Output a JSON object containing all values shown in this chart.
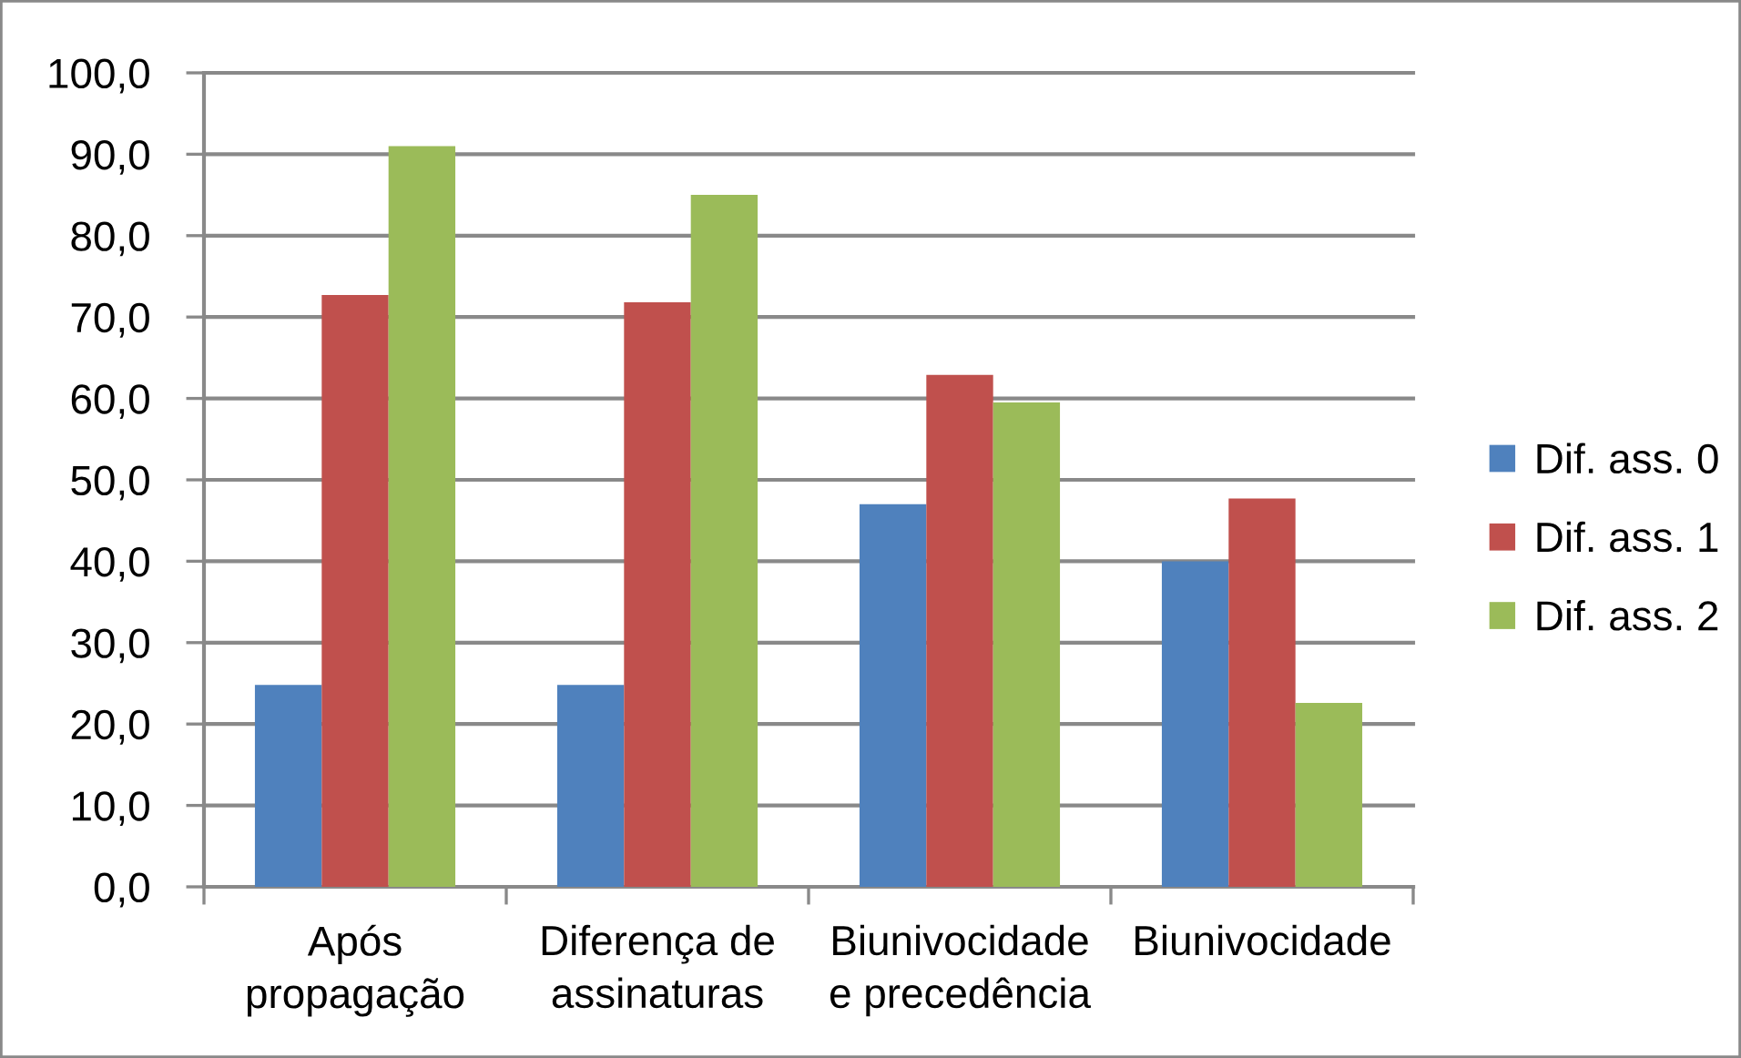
{
  "chart_data": {
    "type": "bar",
    "categories": [
      "Após\npropagação",
      "Diferença de\nassinaturas",
      "Biunivocidade\ne precedência",
      "Biunivocidade"
    ],
    "series": [
      {
        "name": "Dif. ass. 0",
        "color": "#4f81bd",
        "values": [
          24.8,
          24.8,
          47.0,
          40.0
        ]
      },
      {
        "name": "Dif. ass. 1",
        "color": "#c0504d",
        "values": [
          72.7,
          71.8,
          62.9,
          47.7
        ]
      },
      {
        "name": "Dif. ass. 2",
        "color": "#9bbb59",
        "values": [
          91.0,
          85.0,
          59.5,
          22.6
        ]
      }
    ],
    "ylim": [
      0,
      100
    ],
    "yticks": [
      {
        "value": 0,
        "label": "0,0"
      },
      {
        "value": 10,
        "label": "10,0"
      },
      {
        "value": 20,
        "label": "20,0"
      },
      {
        "value": 30,
        "label": "30,0"
      },
      {
        "value": 40,
        "label": "40,0"
      },
      {
        "value": 50,
        "label": "50,0"
      },
      {
        "value": 60,
        "label": "60,0"
      },
      {
        "value": 70,
        "label": "70,0"
      },
      {
        "value": 80,
        "label": "80,0"
      },
      {
        "value": 90,
        "label": "90,0"
      },
      {
        "value": 100,
        "label": "100,0"
      }
    ],
    "grid": "y",
    "legend": "right"
  }
}
